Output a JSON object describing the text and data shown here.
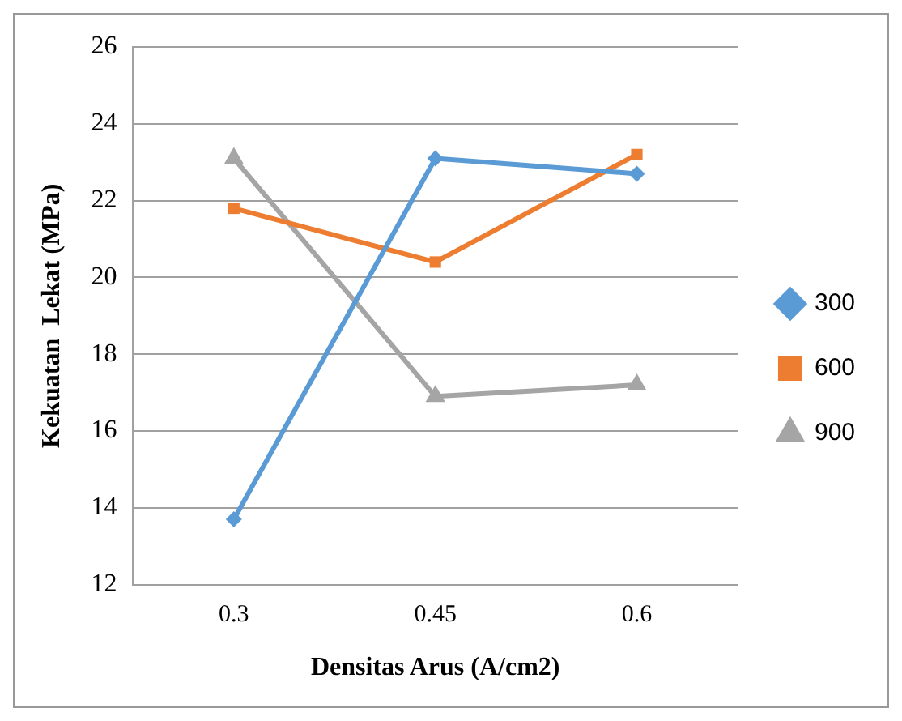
{
  "chart_data": {
    "type": "line",
    "xlabel": "Densitas Arus (A/cm2)",
    "ylabel": "Kekuatan  Lekat (MPa)",
    "categories": [
      "0.3",
      "0.45",
      "0.6"
    ],
    "series": [
      {
        "name": "300",
        "color": "#5b9bd5",
        "values": [
          13.7,
          23.1,
          22.7
        ],
        "marker": "diamond"
      },
      {
        "name": "600",
        "color": "#ed7d31",
        "values": [
          21.8,
          20.4,
          23.2
        ],
        "marker": "square"
      },
      {
        "name": "900",
        "color": "#a5a5a5",
        "values": [
          23.1,
          16.9,
          17.2
        ],
        "marker": "triangle"
      }
    ],
    "ylim": [
      12,
      26
    ],
    "yticks": [
      12,
      14,
      16,
      18,
      20,
      22,
      24,
      26
    ],
    "grid": "y",
    "legend": "right",
    "line_style": "solid"
  }
}
